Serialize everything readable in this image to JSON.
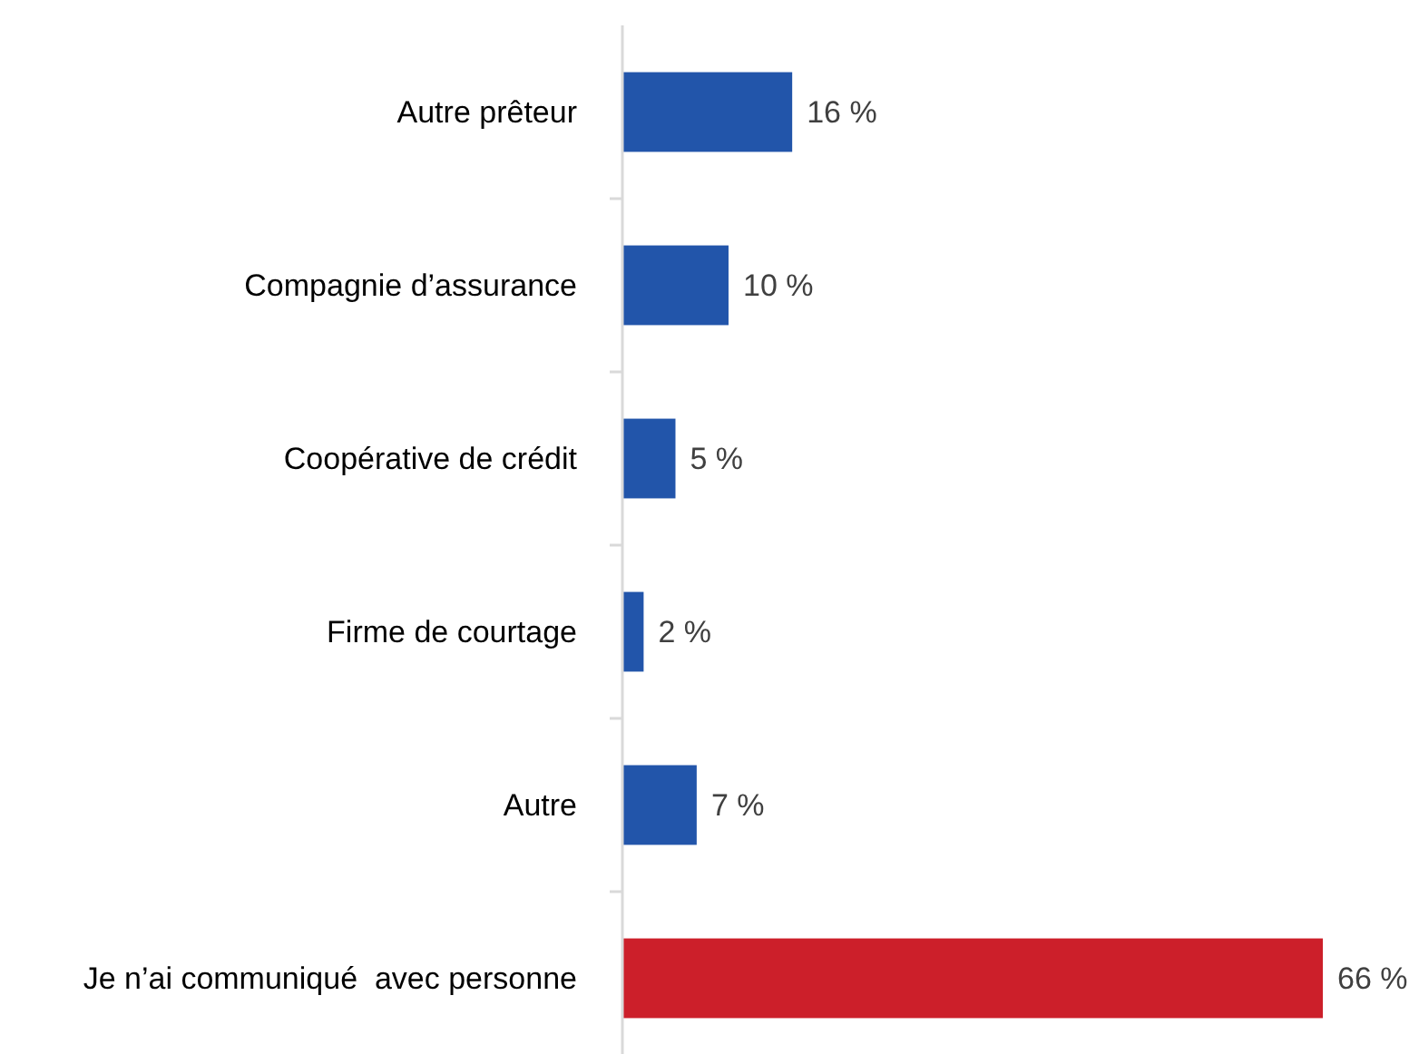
{
  "chart_data": {
    "type": "bar",
    "orientation": "horizontal",
    "categories": [
      "Autre prêteur",
      "Compagnie d’assurance",
      "Coopérative de crédit",
      "Firme de courtage",
      "Autre",
      "Je n’ai communiqué  avec personne"
    ],
    "values": [
      16,
      10,
      5,
      2,
      7,
      66
    ],
    "colors": [
      "#2255aa",
      "#2255aa",
      "#2255aa",
      "#2255aa",
      "#2255aa",
      "#cc1f2a"
    ],
    "value_labels": [
      "16 %",
      "10 %",
      "5 %",
      "2 %",
      "7 %",
      "66 %"
    ]
  }
}
